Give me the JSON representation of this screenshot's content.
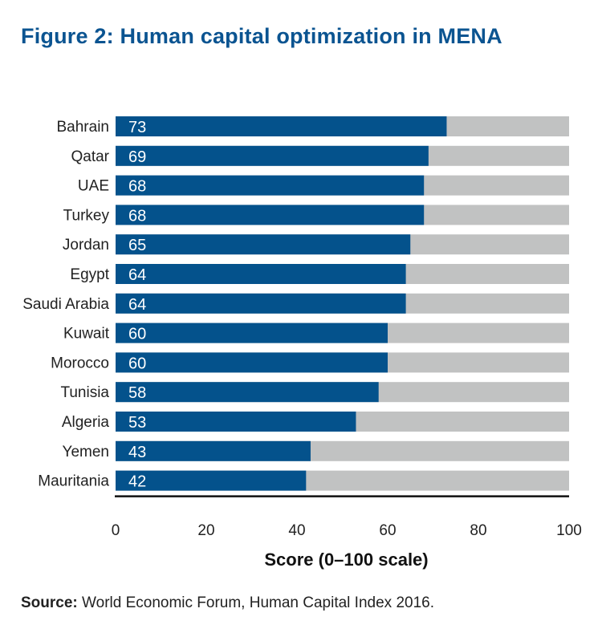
{
  "title": "Figure 2: Human capital optimization in MENA",
  "source": {
    "label": "Source:",
    "text": "World Economic Forum, Human Capital Index 2016."
  },
  "colors": {
    "bar": "#04528c",
    "track": "#c1c2c2",
    "title": "#0b5491",
    "axis": "#111111"
  },
  "chart_data": {
    "type": "bar",
    "orientation": "horizontal",
    "title": "Figure 2: Human capital optimization in MENA",
    "xlabel": "Score (0–100 scale)",
    "ylabel": "",
    "xlim": [
      0,
      100
    ],
    "xticks": [
      "0",
      "20",
      "40",
      "60",
      "80",
      "100"
    ],
    "grid": false,
    "categories": [
      "Bahrain",
      "Qatar",
      "UAE",
      "Turkey",
      "Jordan",
      "Egypt",
      "Saudi Arabia",
      "Kuwait",
      "Morocco",
      "Tunisia",
      "Algeria",
      "Yemen",
      "Mauritania"
    ],
    "values": [
      73,
      69,
      68,
      68,
      65,
      64,
      64,
      60,
      60,
      58,
      53,
      43,
      42
    ],
    "data_labels": [
      "73",
      "69",
      "68",
      "68",
      "65",
      "64",
      "64",
      "60",
      "60",
      "58",
      "53",
      "43",
      "42"
    ]
  }
}
